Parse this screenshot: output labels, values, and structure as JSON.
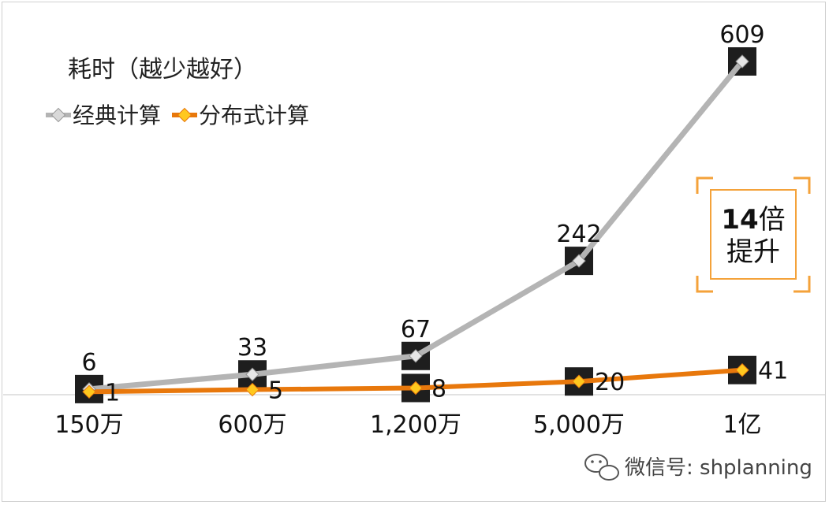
{
  "chart_data": {
    "type": "line",
    "title": "耗时（越少越好）",
    "categories": [
      "150万",
      "600万",
      "1,200万",
      "5,000万",
      "1亿"
    ],
    "series": [
      {
        "name": "经典计算",
        "values": [
          6,
          33,
          67,
          242,
          609
        ],
        "color": "#b4b4b4"
      },
      {
        "name": "分布式计算",
        "values": [
          1,
          5,
          8,
          20,
          41
        ],
        "color": "#e8780c"
      }
    ],
    "ylim": [
      0,
      609
    ],
    "grid": false,
    "legend": "top-left",
    "annotation": {
      "line1_number": "14",
      "line1_unit": "倍",
      "line2": "提升",
      "color": "#f4a23a"
    }
  },
  "watermark": {
    "text": "微信号: shplanning",
    "icon": "wechat-icon"
  }
}
